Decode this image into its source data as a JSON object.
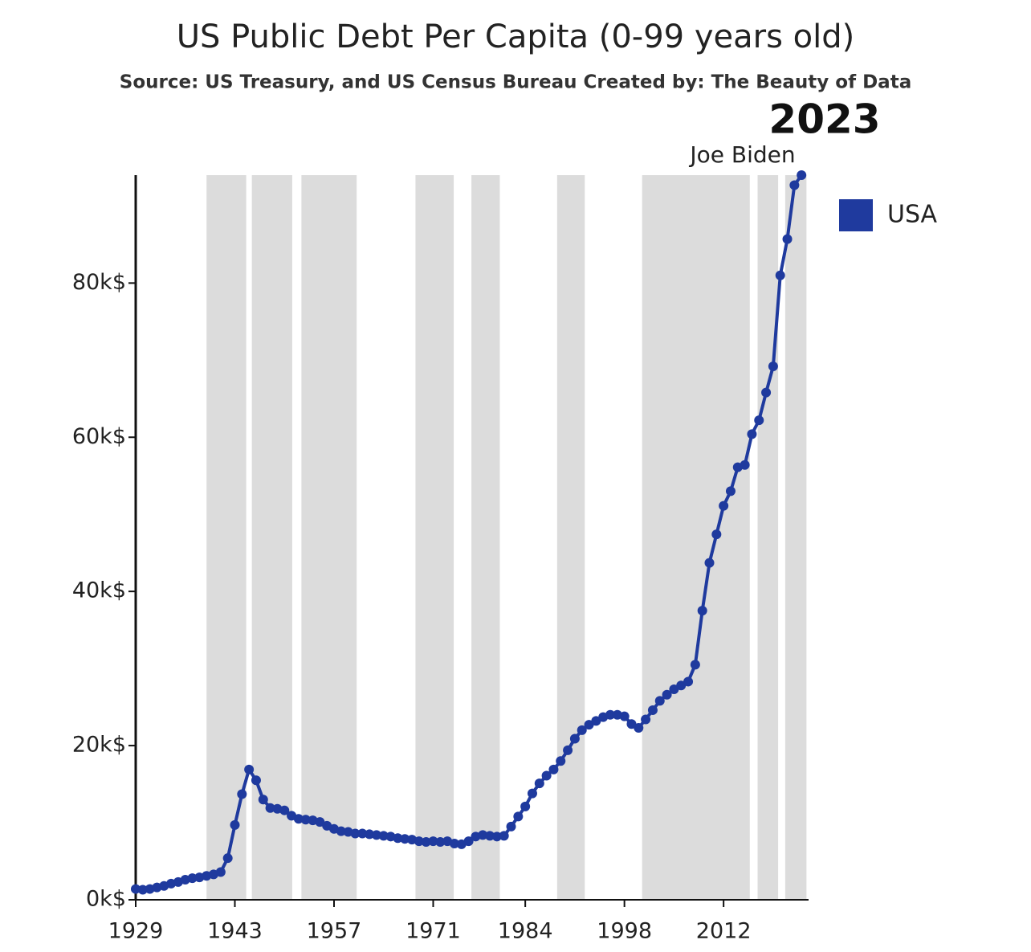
{
  "chart_data": {
    "type": "line",
    "title": "US Public Debt Per Capita (0-99 years old)",
    "subtitle": "Source: US Treasury, and US Census Bureau Created by: The Beauty of Data",
    "annotations": [
      "2023",
      "Joe Biden"
    ],
    "x": [
      1929,
      1930,
      1931,
      1932,
      1933,
      1934,
      1935,
      1936,
      1937,
      1938,
      1939,
      1940,
      1941,
      1942,
      1943,
      1944,
      1945,
      1946,
      1947,
      1948,
      1949,
      1950,
      1951,
      1952,
      1953,
      1954,
      1955,
      1956,
      1957,
      1958,
      1959,
      1960,
      1961,
      1962,
      1963,
      1964,
      1965,
      1966,
      1967,
      1968,
      1969,
      1970,
      1971,
      1972,
      1973,
      1974,
      1975,
      1976,
      1977,
      1978,
      1979,
      1980,
      1981,
      1982,
      1983,
      1984,
      1985,
      1986,
      1987,
      1988,
      1989,
      1990,
      1991,
      1992,
      1993,
      1994,
      1995,
      1996,
      1997,
      1998,
      1999,
      2000,
      2001,
      2002,
      2003,
      2004,
      2005,
      2006,
      2007,
      2008,
      2009,
      2010,
      2011,
      2012,
      2013,
      2014,
      2015,
      2016,
      2017,
      2018,
      2019,
      2020,
      2021,
      2022,
      2023
    ],
    "series": [
      {
        "name": "USA",
        "color": "#1f3a9e",
        "values": [
          1.4,
          1.3,
          1.4,
          1.6,
          1.8,
          2.1,
          2.3,
          2.6,
          2.8,
          2.9,
          3.1,
          3.3,
          3.6,
          5.4,
          9.7,
          13.7,
          16.9,
          15.5,
          13.0,
          11.9,
          11.8,
          11.6,
          10.9,
          10.5,
          10.4,
          10.3,
          10.1,
          9.6,
          9.2,
          8.9,
          8.8,
          8.6,
          8.6,
          8.5,
          8.4,
          8.3,
          8.2,
          8.0,
          7.9,
          7.8,
          7.6,
          7.5,
          7.6,
          7.5,
          7.6,
          7.3,
          7.2,
          7.6,
          8.2,
          8.4,
          8.3,
          8.2,
          8.3,
          9.5,
          10.8,
          12.1,
          13.8,
          15.1,
          16.1,
          16.9,
          18.0,
          19.4,
          20.9,
          22.0,
          22.7,
          23.2,
          23.7,
          24.0,
          24.0,
          23.8,
          22.8,
          22.3,
          23.4,
          24.6,
          25.8,
          26.6,
          27.3,
          27.8,
          28.3,
          30.5,
          37.5,
          43.7,
          47.4,
          51.1,
          53.0,
          56.1,
          56.4,
          60.4,
          62.2,
          65.8,
          69.2,
          81.0,
          85.7,
          92.7,
          94.0
        ]
      }
    ],
    "shaded_periods": [
      [
        1939,
        1944.6
      ],
      [
        1945.4,
        1951.1
      ],
      [
        1952.4,
        1960.2
      ],
      [
        1968.5,
        1973.9
      ],
      [
        1976.4,
        1980.4
      ],
      [
        1988.5,
        1992.4
      ],
      [
        2000.5,
        2015.7
      ],
      [
        2016.8,
        2019.7
      ],
      [
        2020.7,
        2023.7
      ]
    ],
    "band_color": "#dcdcdc",
    "xlim": [
      1929,
      2024
    ],
    "xticks": [
      1929,
      1943,
      1957,
      1971,
      1984,
      1998,
      2012
    ],
    "ylim": [
      0,
      94
    ],
    "yticks": [
      {
        "value": 0,
        "label": "0k$"
      },
      {
        "value": 20,
        "label": "20k$"
      },
      {
        "value": 40,
        "label": "40k$"
      },
      {
        "value": 60,
        "label": "60k$"
      },
      {
        "value": 80,
        "label": "80k$"
      }
    ],
    "grid": false,
    "legend": "top-right"
  }
}
